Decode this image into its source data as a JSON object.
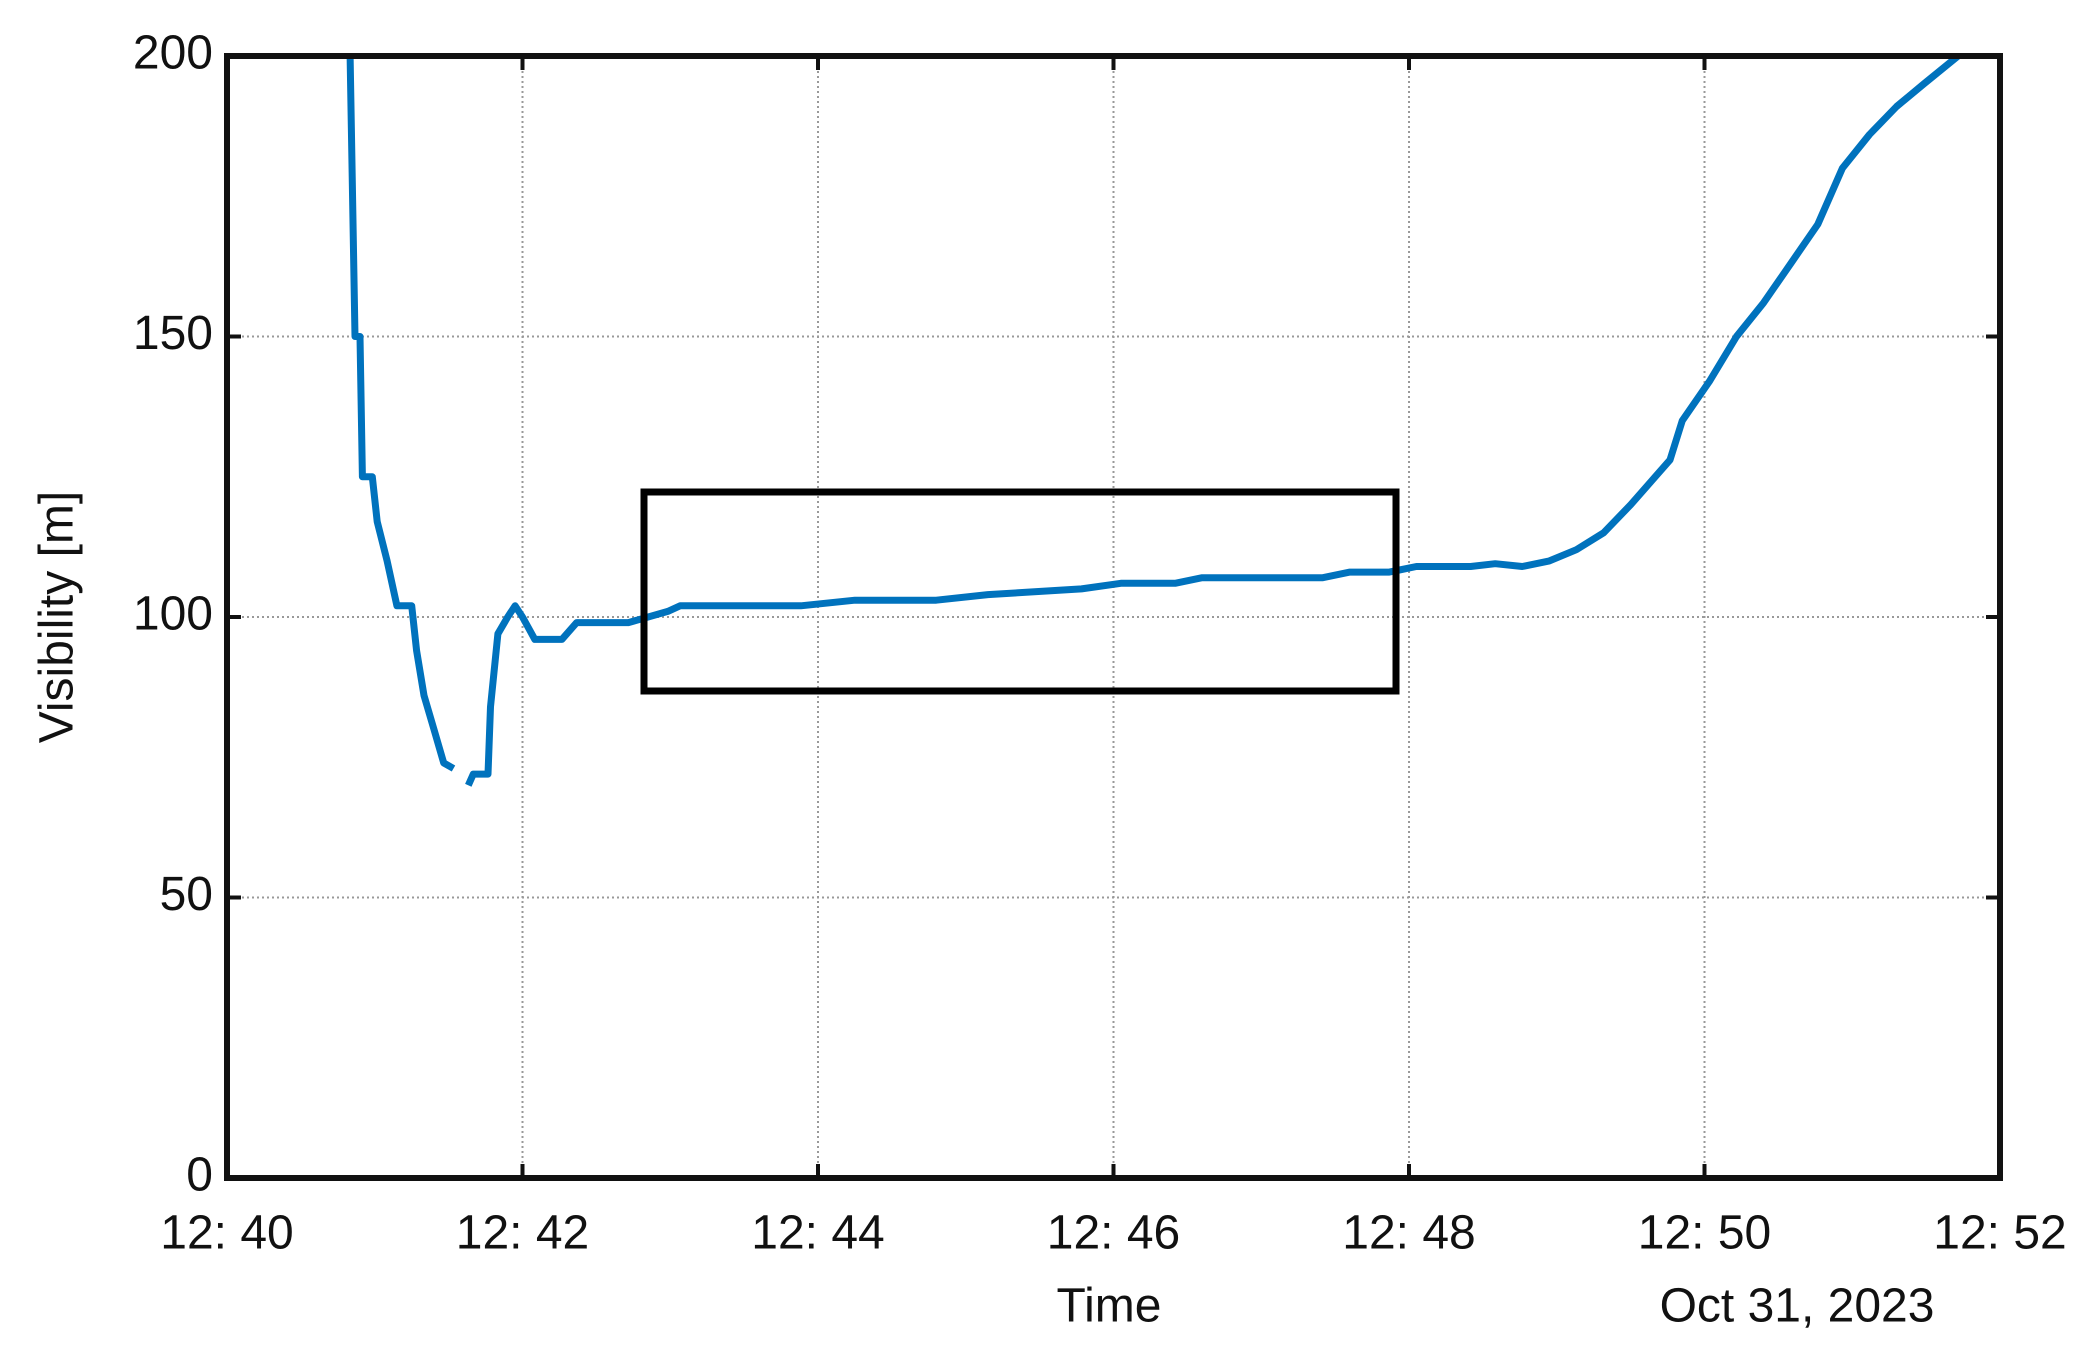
{
  "chart_data": {
    "type": "line",
    "x_label": "Time",
    "y_label": "Visibility [m]",
    "date_label": "Oct 31, 2023",
    "xlim": [
      "12:40:00",
      "12:52:00"
    ],
    "xticks": [
      {
        "value": "12:40:00",
        "label": "12: 40"
      },
      {
        "value": "12:42:00",
        "label": "12: 42"
      },
      {
        "value": "12:44:00",
        "label": "12: 44"
      },
      {
        "value": "12:46:00",
        "label": "12: 46"
      },
      {
        "value": "12:48:00",
        "label": "12: 48"
      },
      {
        "value": "12:50:00",
        "label": "12: 50"
      },
      {
        "value": "12:52:00",
        "label": "12: 52"
      }
    ],
    "ylim": [
      0,
      200
    ],
    "yticks": [
      0,
      50,
      100,
      150,
      200
    ],
    "grid": true,
    "x": [
      "12:40:50",
      "12:40:52",
      "12:40:54",
      "12:40:55",
      "12:40:59",
      "12:41:01",
      "12:41:05",
      "12:41:09",
      "12:41:15",
      "12:41:17",
      "12:41:20",
      "12:41:24",
      "12:41:28",
      "12:41:32",
      "12:41:35",
      "12:41:38",
      "12:41:40",
      "12:41:46",
      "12:41:47",
      "12:41:50",
      "12:41:54",
      "12:41:57",
      "12:42:00",
      "12:42:05",
      "12:42:16",
      "12:42:22",
      "12:42:43",
      "12:42:59",
      "12:43:04",
      "12:43:53",
      "12:44:15",
      "12:44:48",
      "12:45:09",
      "12:45:47",
      "12:46:03",
      "12:46:25",
      "12:46:36",
      "12:47:25",
      "12:47:36",
      "12:47:52",
      "12:48:03",
      "12:48:25",
      "12:48:35",
      "12:48:46",
      "12:48:57",
      "12:49:08",
      "12:49:19",
      "12:49:30",
      "12:49:46",
      "12:49:51",
      "12:50:02",
      "12:50:13",
      "12:50:24",
      "12:50:35",
      "12:50:46",
      "12:50:56",
      "12:51:07",
      "12:51:18",
      "12:51:29",
      "12:51:43"
    ],
    "series": [
      {
        "name": "Visibility",
        "color": "#0072bd",
        "values": [
          200,
          150,
          150,
          125,
          125,
          117,
          110,
          102,
          102,
          94,
          86,
          80,
          74,
          73,
          null,
          70,
          72,
          72,
          84,
          97,
          100,
          102,
          100,
          96,
          96,
          99,
          99,
          101,
          102,
          102,
          103,
          103,
          104,
          105,
          106,
          106,
          107,
          107,
          108,
          108,
          109,
          109,
          109.5,
          109,
          110,
          112,
          115,
          120,
          128,
          135,
          142,
          150,
          156,
          163,
          170,
          180,
          186,
          191,
          195,
          200
        ]
      }
    ]
  }
}
